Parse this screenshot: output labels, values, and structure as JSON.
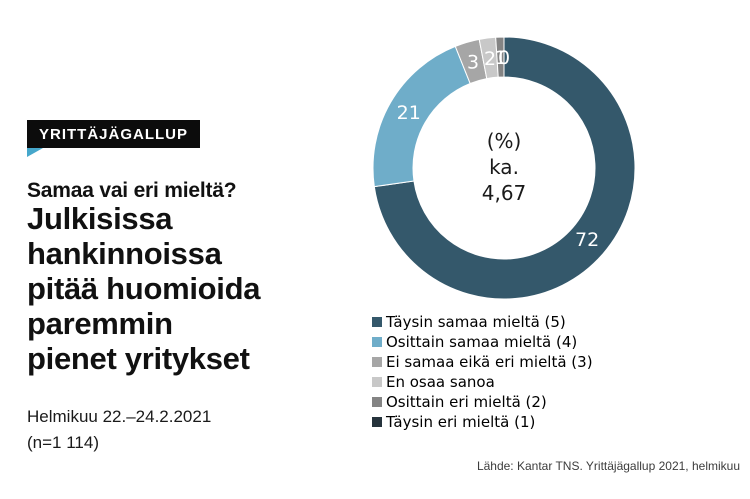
{
  "header": {
    "badge": "YRITTÄJÄGALLUP",
    "kicker": "Samaa vai eri mieltä?",
    "title": "Julkisissa\nhankinnoissa\npitää huomioida\nparemmin\npienet yritykset",
    "date_range": "Helmikuu 22.–24.2.2021",
    "sample": "(n=1 114)"
  },
  "footer": {
    "source": "Lähde: Kantar TNS. Yrittäjägallup 2021, helmikuu"
  },
  "colors": {
    "badge_bg": "#0c0c0c",
    "badge_text": "#ffffff",
    "badge_tail": "#46a7cb",
    "slice_label_text": "#ffffff"
  },
  "chart_data": {
    "type": "pie",
    "subtype": "donut",
    "title": "Julkisissa hankinnoissa pitää huomioida paremmin pienet yritykset",
    "unit": "%",
    "mean": "4,67",
    "center_label_lines": [
      "(%)",
      "ka.",
      "4,67"
    ],
    "categories": [
      "Täysin samaa mieltä (5)",
      "Osittain samaa mieltä (4)",
      "Ei samaa eikä eri mieltä (3)",
      "En osaa sanoa",
      "Osittain eri mieltä (2)",
      "Täysin eri mieltä (1)"
    ],
    "values": [
      72,
      21,
      3,
      2,
      1,
      0
    ],
    "colors": [
      "#34586b",
      "#6fadc9",
      "#a6a6a6",
      "#c8c8c8",
      "#848484",
      "#26333c"
    ],
    "start_angle_deg": 0,
    "direction": "clockwise",
    "legend_position": "bottom-right",
    "grid": false
  }
}
